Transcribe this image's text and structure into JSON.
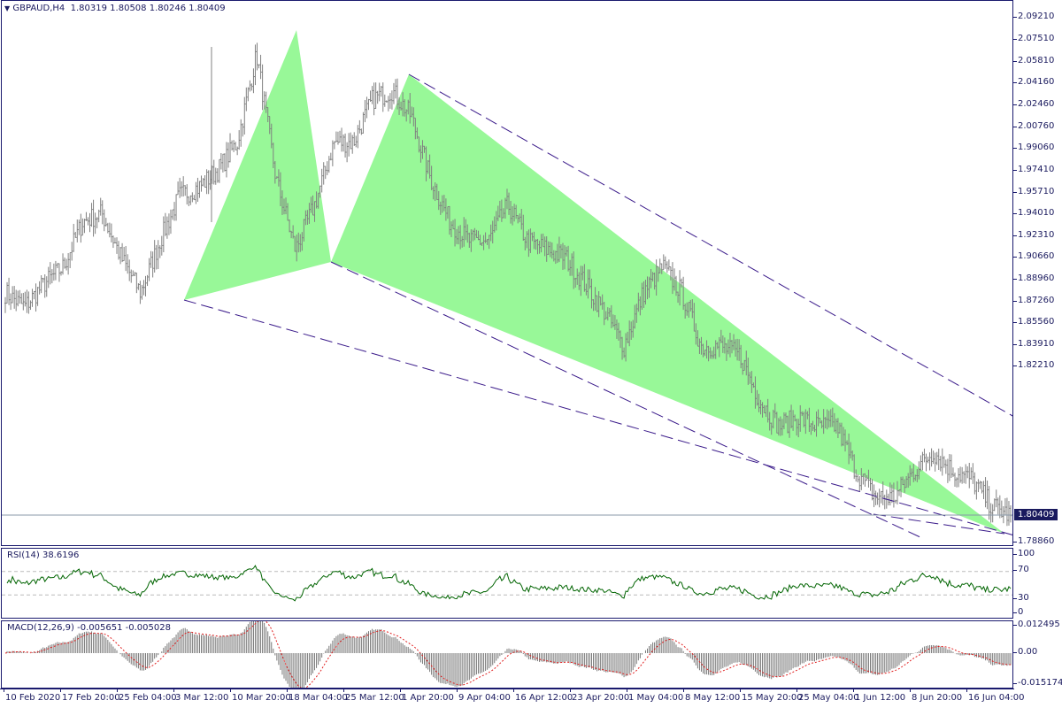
{
  "header": {
    "symbol": "GBPAUD,H4",
    "open": "1.80319",
    "high": "1.80508",
    "low": "1.80246",
    "close": "1.80409",
    "menu_icon": "triangle-down-icon"
  },
  "price_axis": {
    "labels": [
      "2.09210",
      "2.07510",
      "2.05810",
      "2.04160",
      "2.02460",
      "2.00760",
      "1.99060",
      "1.97410",
      "1.95710",
      "1.94010",
      "1.92310",
      "1.90660",
      "1.88960",
      "1.87260",
      "1.85560",
      "1.83910",
      "1.82210",
      "1.78860"
    ],
    "current_price": "1.80409"
  },
  "rsi": {
    "title": "RSI(14) 38.6196",
    "labels": [
      "100",
      "70",
      "30",
      "0"
    ],
    "levels": [
      70,
      30
    ],
    "color": "#006400"
  },
  "macd": {
    "title": "MACD(12,26,9) -0.005651 -0.005028",
    "labels": [
      "0.012495",
      "0.00",
      "-0.015174"
    ],
    "signal_color": "#e02020"
  },
  "time_axis": {
    "labels": [
      "10 Feb 2020",
      "17 Feb 20:00",
      "25 Feb 04:00",
      "3 Mar 12:00",
      "10 Mar 20:00",
      "18 Mar 04:00",
      "25 Mar 12:00",
      "1 Apr 20:00",
      "9 Apr 04:00",
      "16 Apr 12:00",
      "23 Apr 20:00",
      "1 May 04:00",
      "8 May 12:00",
      "15 May 20:00",
      "25 May 04:00",
      "1 Jun 12:00",
      "8 Jun 20:00",
      "16 Jun 04:00"
    ]
  },
  "chart_data": {
    "type": "ohlc",
    "symbol": "GBPAUD",
    "timeframe": "H4",
    "ylim": [
      1.7886,
      2.0921
    ],
    "approx_close_path": [
      1.933,
      1.925,
      1.938,
      1.948,
      1.974,
      1.979,
      1.953,
      1.933,
      1.963,
      1.989,
      1.994,
      2.004,
      2.02,
      2.071,
      1.999,
      1.958,
      1.984,
      2.02,
      2.02,
      2.045,
      2.05,
      2.035,
      1.999,
      1.974,
      1.963,
      1.963,
      1.984,
      1.963,
      1.958,
      1.953,
      1.938,
      1.922,
      1.902,
      1.933,
      1.948,
      1.933,
      1.902,
      1.902,
      1.897,
      1.871,
      1.856,
      1.861,
      1.856,
      1.856,
      1.83,
      1.815,
      1.815,
      1.83,
      1.841,
      1.83,
      1.825,
      1.81,
      1.80409
    ],
    "colors": {
      "bars": "#808080",
      "pattern_fill": "#98f898",
      "trend_lines": "#3a1a8a",
      "current_price_line": "#8898a8"
    }
  }
}
